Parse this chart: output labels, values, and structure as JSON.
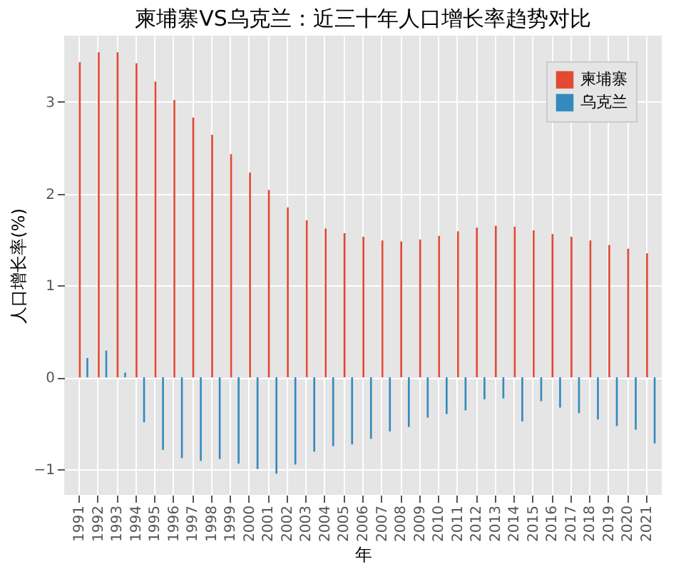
{
  "chart_data": {
    "type": "bar",
    "title": "柬埔寨VS乌克兰：近三十年人口增长率趋势对比",
    "xlabel": "年",
    "ylabel": "人口增长率(%)",
    "categories": [
      "1991",
      "1992",
      "1993",
      "1994",
      "1995",
      "1996",
      "1997",
      "1998",
      "1999",
      "2000",
      "2001",
      "2002",
      "2003",
      "2004",
      "2005",
      "2006",
      "2007",
      "2008",
      "2009",
      "2010",
      "2011",
      "2012",
      "2013",
      "2014",
      "2015",
      "2016",
      "2017",
      "2018",
      "2019",
      "2020",
      "2021"
    ],
    "series": [
      {
        "name": "柬埔寨",
        "color": "#e24a33",
        "values": [
          3.43,
          3.54,
          3.54,
          3.42,
          3.22,
          3.02,
          2.83,
          2.64,
          2.43,
          2.23,
          2.04,
          1.85,
          1.71,
          1.62,
          1.57,
          1.53,
          1.49,
          1.48,
          1.5,
          1.54,
          1.59,
          1.63,
          1.65,
          1.64,
          1.6,
          1.56,
          1.53,
          1.49,
          1.44,
          1.4,
          1.35
        ]
      },
      {
        "name": "乌克兰",
        "color": "#348abd",
        "values": [
          0.21,
          0.29,
          0.05,
          -0.49,
          -0.79,
          -0.88,
          -0.91,
          -0.89,
          -0.94,
          -1.0,
          -1.05,
          -0.95,
          -0.81,
          -0.75,
          -0.73,
          -0.67,
          -0.59,
          -0.54,
          -0.44,
          -0.4,
          -0.36,
          -0.24,
          -0.23,
          -0.48,
          -0.26,
          -0.33,
          -0.39,
          -0.46,
          -0.53,
          -0.57,
          -0.72
        ]
      }
    ],
    "ylim": [
      -1.28,
      3.72
    ],
    "yticks": [
      -1,
      0,
      1,
      2,
      3
    ],
    "grid": true,
    "legend": "top right"
  }
}
